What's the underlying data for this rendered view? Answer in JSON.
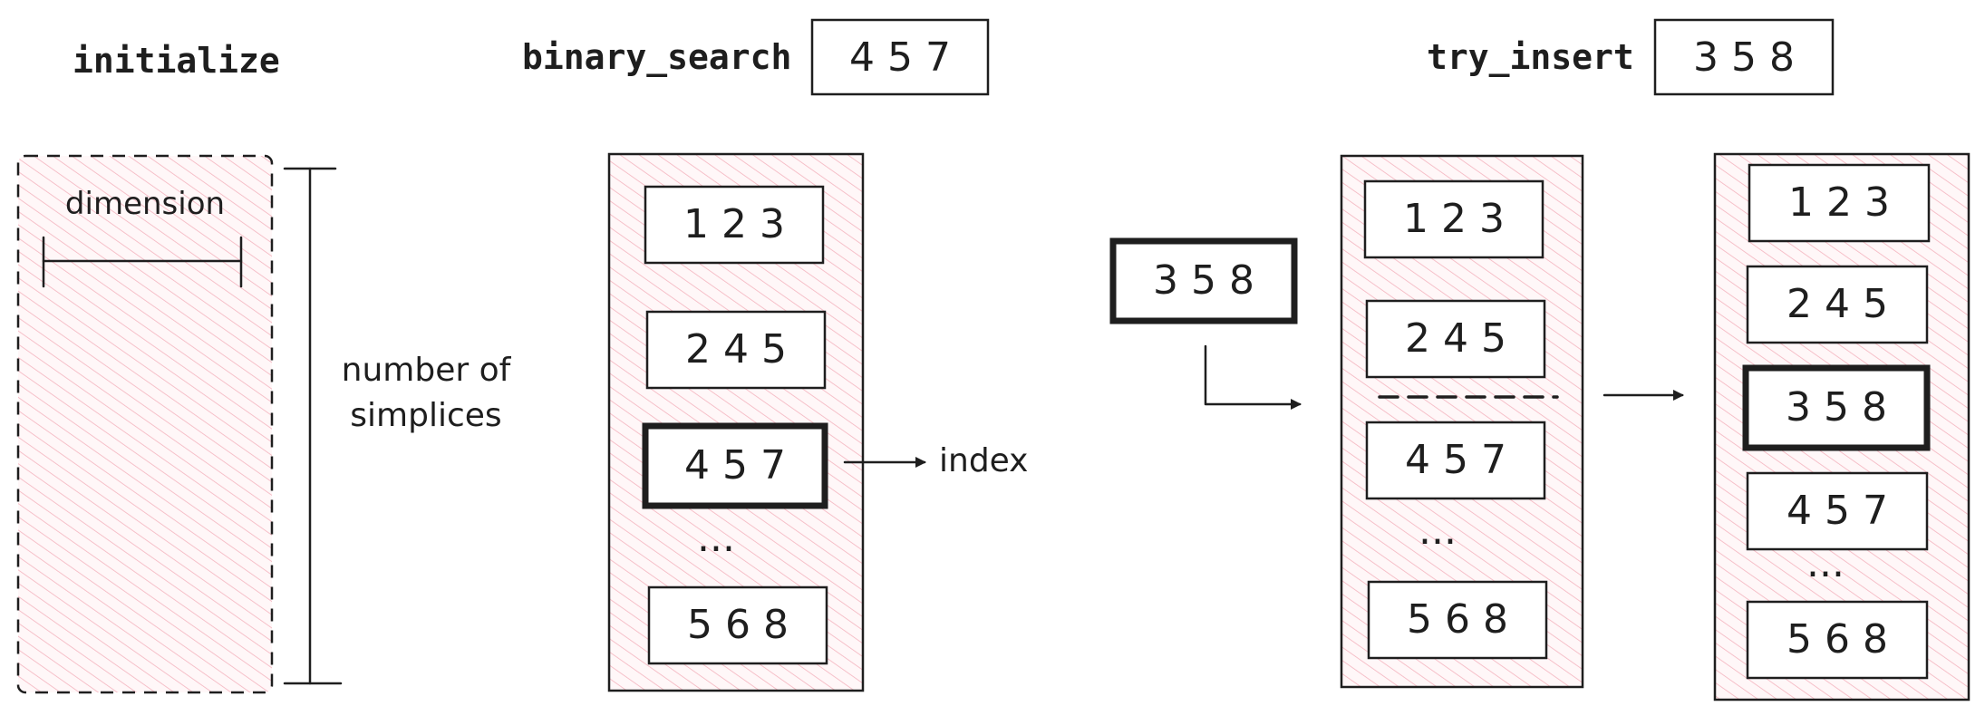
{
  "headings": {
    "initialize": "initialize",
    "binary_search": "binary_search",
    "try_insert": "try_insert"
  },
  "binary_search_query": "4 5 7",
  "try_insert_query": "3 5 8",
  "initialize_panel": {
    "width_label": "dimension",
    "height_label_line1": "number of",
    "height_label_line2": "simplices"
  },
  "binary_search_panel": {
    "cells": [
      "1 2 3",
      "2 4 5",
      "4 5 7",
      "...",
      "5 6 8"
    ],
    "highlight_index": 2,
    "result_label": "index"
  },
  "insert_item": "3 5 8",
  "try_insert_before": {
    "cells": [
      "1 2 3",
      "2 4 5",
      "4 5 7",
      "...",
      "5 6 8"
    ]
  },
  "try_insert_after": {
    "cells": [
      "1 2 3",
      "2 4 5",
      "3 5 8",
      "4 5 7",
      "...",
      "5 6 8"
    ],
    "highlight_index": 2
  },
  "colors": {
    "hatch": "#f5b5bf",
    "panel_fill": "#fff5f6",
    "stroke": "#1e1e1e"
  }
}
